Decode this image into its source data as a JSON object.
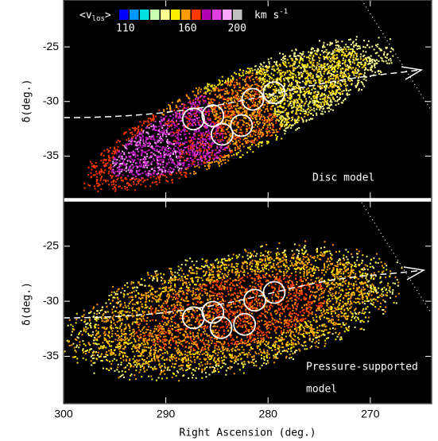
{
  "chart_data": [
    {
      "type": "scatter",
      "xlim": [
        300,
        264
      ],
      "ylim": [
        -38.9,
        -20.7
      ],
      "xticks": [
        300,
        290,
        280,
        270
      ],
      "yticks": [
        -25,
        -30,
        -35
      ],
      "ylabel": "δ(deg.)",
      "label": [
        "Disc model"
      ],
      "colorbar": {
        "label_parts": [
          "<v",
          "los",
          ">"
        ],
        "unit_parts": [
          "km s",
          "-1"
        ],
        "colors": [
          "#0000ff",
          "#0096ff",
          "#00e0e0",
          "#c8ffb0",
          "#ffff90",
          "#ffee00",
          "#ff9a00",
          "#ff3a00",
          "#b000b0",
          "#e040e0",
          "#ffa8ff",
          "#c0c0c0"
        ],
        "range": [
          105,
          205
        ],
        "ticks": [
          110,
          160,
          200
        ]
      },
      "circles": {
        "x": [
          287.3,
          285.4,
          284.5,
          282.6,
          281.5,
          279.4
        ],
        "y": [
          -31.6,
          -31.3,
          -33.0,
          -32.2,
          -29.8,
          -29.2
        ]
      }
    },
    {
      "type": "scatter",
      "xlim": [
        300,
        264
      ],
      "ylim": [
        -39.3,
        -20.9
      ],
      "xticks": [
        300,
        290,
        280,
        270
      ],
      "yticks": [
        -25,
        -30,
        -35
      ],
      "xlabel": "Right Ascension (deg.)",
      "ylabel": "δ(deg.)",
      "label": [
        "Pressure-supported",
        "model"
      ],
      "circles": {
        "x": [
          287.3,
          285.4,
          284.6,
          282.3,
          281.3,
          279.4
        ],
        "y": [
          -31.5,
          -31.0,
          -32.4,
          -32.1,
          -29.9,
          -29.2
        ]
      }
    }
  ]
}
